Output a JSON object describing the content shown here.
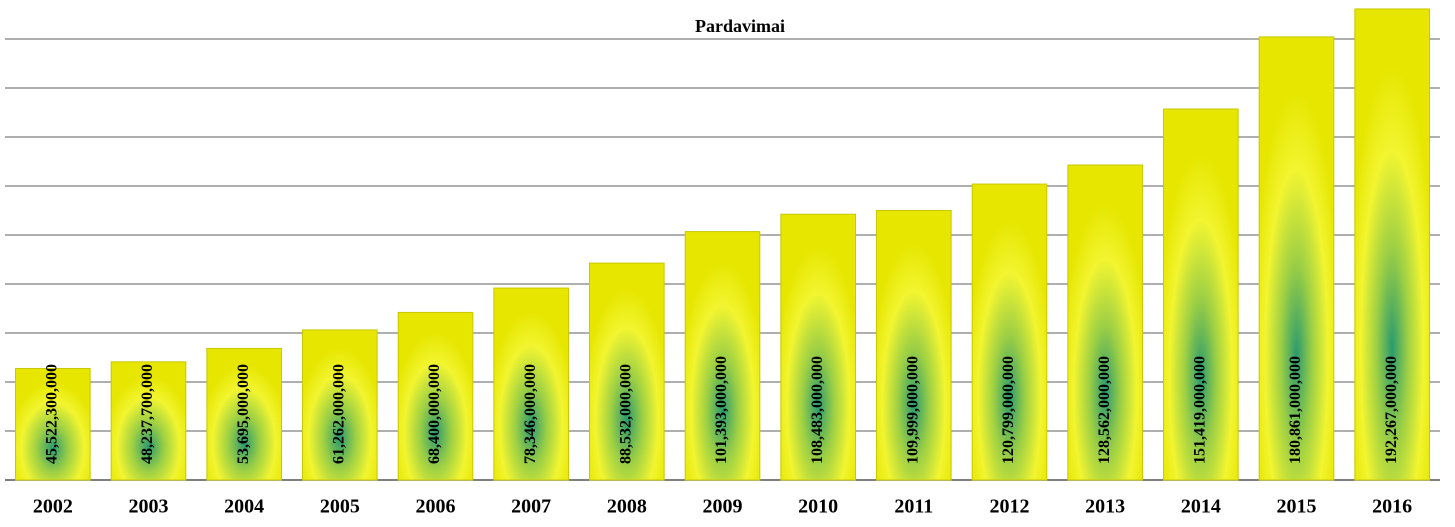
{
  "chart_data": {
    "type": "bar",
    "title": "Pardavimai",
    "categories": [
      "2002",
      "2003",
      "2004",
      "2005",
      "2006",
      "2007",
      "2008",
      "2009",
      "2010",
      "2011",
      "2012",
      "2013",
      "2014",
      "2015",
      "2016"
    ],
    "values": [
      45522300000,
      48237700000,
      53695000000,
      61262000000,
      68400000000,
      78346000000,
      88532000000,
      101393000000,
      108483000000,
      109999000000,
      120799000000,
      128562000000,
      151419000000,
      180861000000,
      192267000000
    ],
    "value_labels": [
      "45,522,300,000",
      "48,237,700,000",
      "53,695,000,000",
      "61,262,000,000",
      "68,400,000,000",
      "78,346,000,000",
      "88,532,000,000",
      "101,393,000,000",
      "108,483,000,000",
      "109,999,000,000",
      "120,799,000,000",
      "128,562,000,000",
      "151,419,000,000",
      "180,861,000,000",
      "192,267,000,000"
    ],
    "color": "#ffff33",
    "ylim": [
      0,
      200000000000
    ],
    "yticks": [
      0,
      20000000000,
      40000000000,
      60000000000,
      80000000000,
      100000000000,
      120000000000,
      140000000000,
      160000000000,
      180000000000
    ],
    "grid": true
  }
}
